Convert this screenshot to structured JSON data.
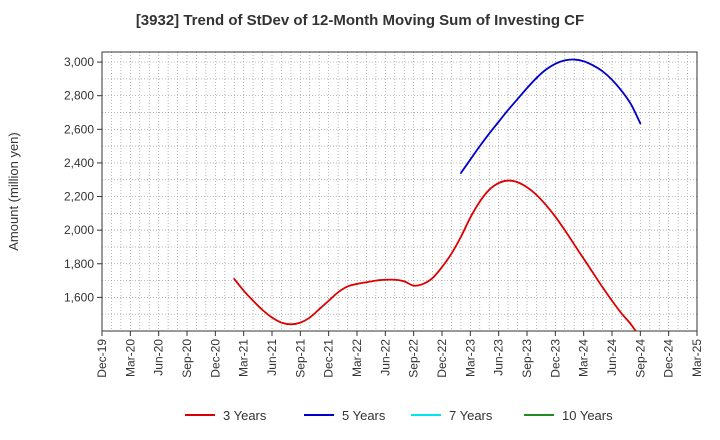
{
  "chart_data": {
    "type": "line",
    "title": "[3932]  Trend of StDev of 12-Month Moving Sum of Investing CF",
    "ylabel": "Amount (million yen)",
    "xlabel": "",
    "categories": [
      "Dec-19",
      "Mar-20",
      "Jun-20",
      "Sep-20",
      "Dec-20",
      "Mar-21",
      "Jun-21",
      "Sep-21",
      "Dec-21",
      "Mar-22",
      "Jun-22",
      "Sep-22",
      "Dec-22",
      "Mar-23",
      "Jun-23",
      "Sep-23",
      "Dec-23",
      "Mar-24",
      "Jun-24",
      "Sep-24",
      "Dec-24",
      "Mar-25"
    ],
    "ylim": [
      1400,
      3060
    ],
    "yticks": [
      1600,
      1800,
      2000,
      2200,
      2400,
      2600,
      2800,
      3000
    ],
    "ytick_labels": [
      "1,600",
      "1,800",
      "2,000",
      "2,200",
      "2,400",
      "2,600",
      "2,800",
      "3,000"
    ],
    "grid": true,
    "legend_position": "bottom",
    "series": [
      {
        "name": "3 Years",
        "color": "#dd0000",
        "x": [
          "Feb-21",
          "Mar-21",
          "Apr-21",
          "May-21",
          "Jun-21",
          "Jul-21",
          "Aug-21",
          "Sep-21",
          "Oct-21",
          "Nov-21",
          "Dec-21",
          "Jan-22",
          "Feb-22",
          "Mar-22",
          "Apr-22",
          "May-22",
          "Jun-22",
          "Jul-22",
          "Aug-22",
          "Sep-22",
          "Oct-22",
          "Nov-22",
          "Dec-22",
          "Jan-23",
          "Feb-23",
          "Mar-23",
          "Apr-23",
          "May-23",
          "Jun-23",
          "Jul-23",
          "Aug-23",
          "Sep-23",
          "Oct-23",
          "Nov-23",
          "Dec-23",
          "Jan-24",
          "Feb-24",
          "Mar-24",
          "Apr-24",
          "May-24",
          "Jun-24",
          "Jul-24",
          "Aug-24",
          "Sep-24"
        ],
        "values": [
          1710,
          1640,
          1580,
          1525,
          1480,
          1450,
          1440,
          1450,
          1480,
          1530,
          1580,
          1630,
          1665,
          1680,
          1690,
          1700,
          1705,
          1705,
          1695,
          1670,
          1680,
          1715,
          1780,
          1860,
          1960,
          2075,
          2170,
          2240,
          2280,
          2295,
          2285,
          2255,
          2210,
          2150,
          2080,
          2000,
          1915,
          1830,
          1745,
          1660,
          1580,
          1505,
          1440,
          1360
        ]
      },
      {
        "name": "5 Years",
        "color": "#0000cc",
        "x": [
          "Feb-23",
          "Mar-23",
          "Apr-23",
          "May-23",
          "Jun-23",
          "Jul-23",
          "Aug-23",
          "Sep-23",
          "Oct-23",
          "Nov-23",
          "Dec-23",
          "Jan-24",
          "Feb-24",
          "Mar-24",
          "Apr-24",
          "May-24",
          "Jun-24",
          "Jul-24",
          "Aug-24",
          "Sep-24"
        ],
        "values": [
          2340,
          2420,
          2500,
          2575,
          2645,
          2715,
          2780,
          2845,
          2905,
          2955,
          2990,
          3010,
          3015,
          3005,
          2980,
          2945,
          2895,
          2830,
          2750,
          2635
        ]
      },
      {
        "name": "7 Years",
        "color": "#00e5ee",
        "x": [],
        "values": []
      },
      {
        "name": "10 Years",
        "color": "#228b22",
        "x": [],
        "values": []
      }
    ]
  }
}
